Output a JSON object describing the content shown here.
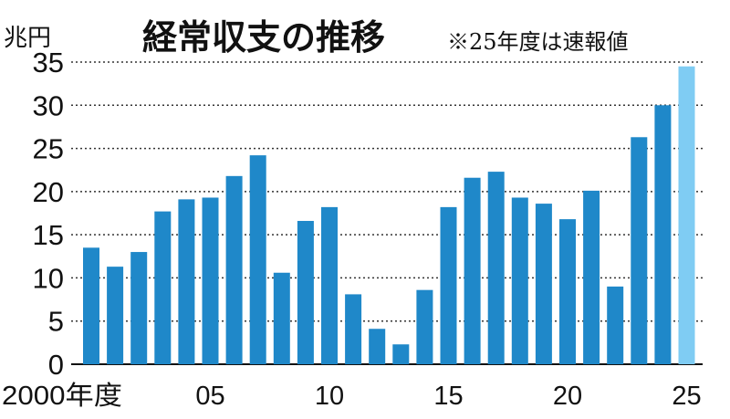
{
  "chart_data": {
    "type": "bar",
    "title": "経常収支の推移",
    "note": "※25年度は速報値",
    "ylabel": "兆円",
    "ylim": [
      0,
      35
    ],
    "yticks": [
      0,
      5,
      10,
      15,
      20,
      25,
      30,
      35
    ],
    "grid": true,
    "x": [
      2000,
      2001,
      2002,
      2003,
      2004,
      2005,
      2006,
      2007,
      2008,
      2009,
      2010,
      2011,
      2012,
      2013,
      2014,
      2015,
      2016,
      2017,
      2018,
      2019,
      2020,
      2021,
      2022,
      2023,
      2024,
      2025
    ],
    "values": [
      13.5,
      11.3,
      13.0,
      17.7,
      19.1,
      19.3,
      21.8,
      24.2,
      10.6,
      16.6,
      18.2,
      8.1,
      4.1,
      2.3,
      8.6,
      18.2,
      21.6,
      22.3,
      19.3,
      18.6,
      16.8,
      20.1,
      9.0,
      26.3,
      30.0,
      34.5
    ],
    "xtick_labels": [
      {
        "x": 2000,
        "label": "2000年度"
      },
      {
        "x": 2005,
        "label": "05"
      },
      {
        "x": 2010,
        "label": "10"
      },
      {
        "x": 2015,
        "label": "15"
      },
      {
        "x": 2020,
        "label": "20"
      },
      {
        "x": 2025,
        "label": "25"
      }
    ],
    "colors": {
      "bar": "#1f88c9",
      "highlight_bar": "#7fccf3",
      "highlight_x": 2025,
      "grid": "#333333",
      "axis": "#111111"
    }
  }
}
